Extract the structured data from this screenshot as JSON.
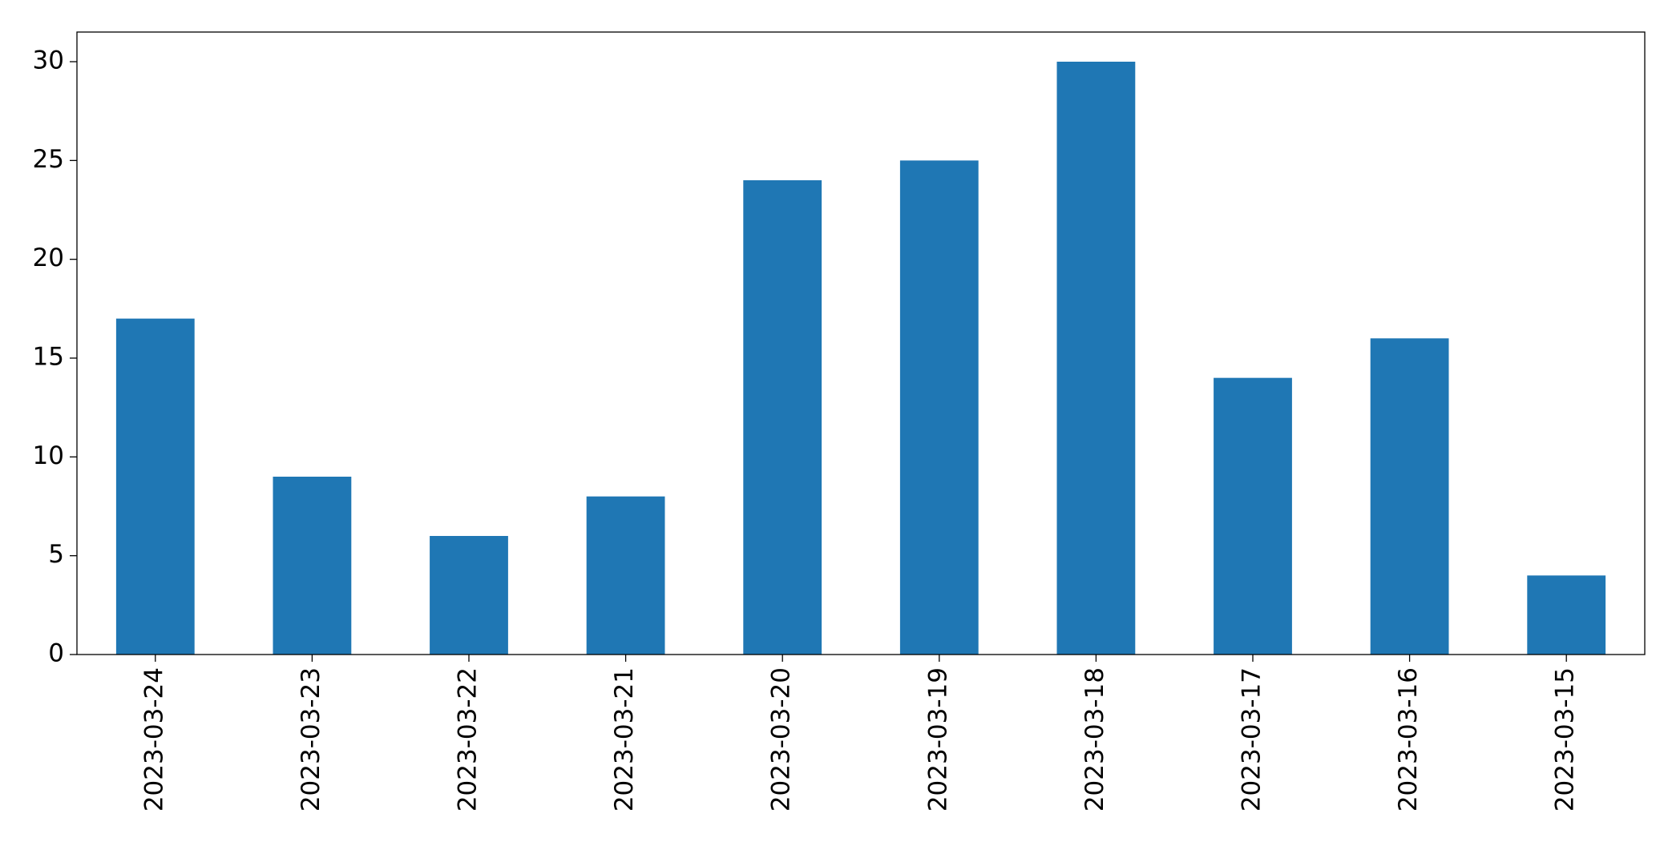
{
  "chart_data": {
    "type": "bar",
    "categories": [
      "2023-03-24",
      "2023-03-23",
      "2023-03-22",
      "2023-03-21",
      "2023-03-20",
      "2023-03-19",
      "2023-03-18",
      "2023-03-17",
      "2023-03-16",
      "2023-03-15"
    ],
    "values": [
      17,
      9,
      6,
      8,
      24,
      25,
      30,
      14,
      16,
      4
    ],
    "color": "#1f77b4",
    "ylim": [
      0,
      31.5
    ],
    "yticks": [
      0,
      5,
      10,
      15,
      20,
      25,
      30
    ],
    "grid": false
  }
}
